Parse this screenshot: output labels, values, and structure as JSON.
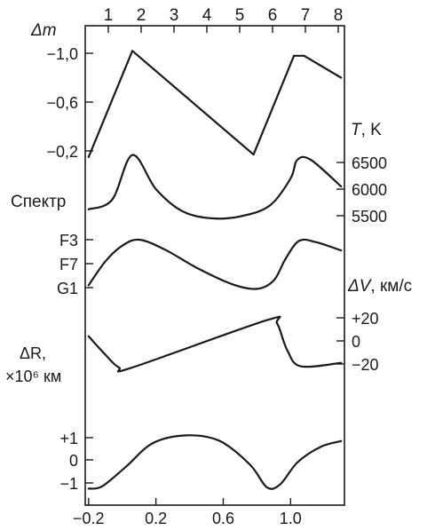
{
  "chart_data": {
    "type": "line",
    "top_axis": {
      "ticks": [
        "1",
        "2",
        "3",
        "4",
        "5",
        "6",
        "7",
        "8"
      ]
    },
    "bottom_axis": {
      "ticks": [
        "-0.2",
        "0.2",
        "0.6",
        "1.0"
      ],
      "range": [
        -0.22,
        1.32
      ]
    },
    "panels": [
      {
        "id": "magnitude",
        "axis_label_main": "Δm",
        "axis_label_unit": "",
        "side": "left",
        "ticks": [
          "-1,0",
          "-0,6",
          "-0,2"
        ],
        "x": [
          -0.2,
          0.06,
          0.78,
          1.02,
          1.08,
          1.3
        ],
        "y": [
          -0.15,
          -1.02,
          -0.17,
          -0.98,
          -0.98,
          -0.8
        ]
      },
      {
        "id": "temperature",
        "axis_label_main": "T",
        "axis_label_unit": ", K",
        "side": "right",
        "ticks": [
          "6500",
          "6000",
          "5500"
        ],
        "x": [
          -0.2,
          -0.06,
          0.06,
          0.2,
          0.36,
          0.54,
          0.72,
          0.88,
          1.0,
          1.04,
          1.12,
          1.3
        ],
        "y": [
          5620,
          5800,
          6640,
          6000,
          5580,
          5450,
          5500,
          5700,
          6200,
          6550,
          6550,
          6050
        ]
      },
      {
        "id": "spectrum",
        "axis_label_main": "Спектр",
        "axis_label_unit": "",
        "side": "left",
        "ticks": [
          "F3",
          "F7",
          "G1"
        ],
        "x": [
          -0.2,
          -0.1,
          0.0,
          0.1,
          0.25,
          0.45,
          0.65,
          0.8,
          0.9,
          0.97,
          1.05,
          1.15,
          1.3
        ],
        "y": [
          1.9,
          0.9,
          0.25,
          0.0,
          0.4,
          1.2,
          1.85,
          2.05,
          1.7,
          0.8,
          0.05,
          0.1,
          0.45
        ]
      },
      {
        "id": "radial_velocity",
        "axis_label_main": "ΔV",
        "axis_label_unit": ", км/c",
        "side": "right",
        "ticks": [
          "+20",
          "0",
          "-20"
        ],
        "x": [
          -0.2,
          -0.1,
          -0.02,
          0.06,
          0.86,
          0.92,
          0.98,
          1.06,
          1.3
        ],
        "y": [
          4,
          -12,
          -23,
          -23,
          18,
          15,
          -8,
          -22,
          -19
        ]
      },
      {
        "id": "radius",
        "axis_label_main": "ΔR,",
        "axis_label_unit": "×10⁶ км",
        "side": "left",
        "ticks": [
          "+1",
          "0",
          "-1"
        ],
        "x": [
          -0.2,
          -0.12,
          0.02,
          0.18,
          0.38,
          0.58,
          0.76,
          0.86,
          0.94,
          1.04,
          1.18,
          1.3
        ],
        "y": [
          -1.25,
          -1.15,
          -0.3,
          0.75,
          1.1,
          0.85,
          -0.2,
          -1.2,
          -1.05,
          -0.1,
          0.6,
          0.85
        ]
      }
    ]
  }
}
